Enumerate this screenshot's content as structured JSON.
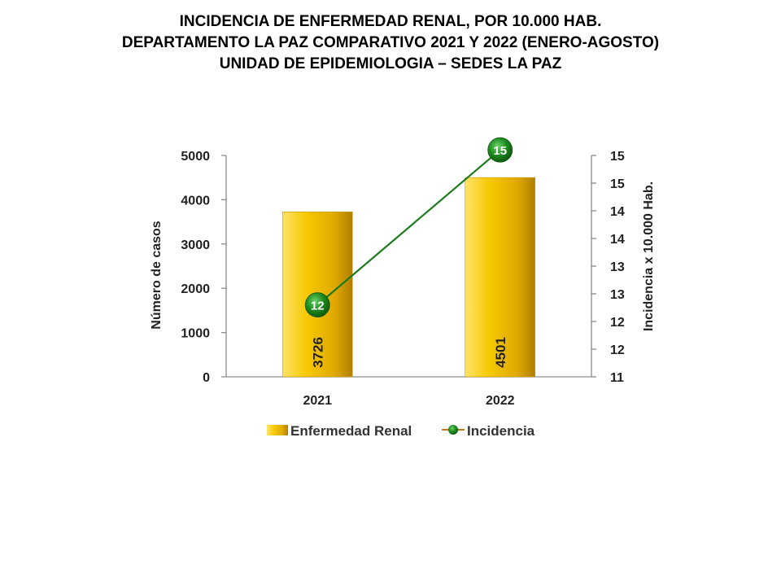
{
  "title": {
    "line1": "INCIDENCIA  DE  ENFERMEDAD  RENAL,  POR  10.000  HAB.",
    "line2": "DEPARTAMENTO  LA  PAZ  COMPARATIVO  2021  Y  2022  (ENERO-AGOSTO)",
    "line3": "UNIDAD DE EPIDEMIOLOGIA – SEDES LA PAZ"
  },
  "chart_data": {
    "type": "bar",
    "categories": [
      "2021",
      "2022"
    ],
    "series": [
      {
        "name": "Enfermedad Renal",
        "type": "bar",
        "axis": "left",
        "values": [
          3726,
          4501
        ],
        "value_labels": [
          "3726",
          "4501"
        ],
        "color": "#F2C200"
      },
      {
        "name": "Incidencia",
        "type": "line",
        "axis": "right",
        "values": [
          12.3,
          15.1
        ],
        "value_labels": [
          "12",
          "15"
        ],
        "color": "#1E7A1E",
        "marker_color": "#1E8C1E"
      }
    ],
    "ylabel": "Número de casos",
    "y2label": "Incidencia x 10.000 Hab.",
    "ylim": [
      0,
      5000
    ],
    "yticks": [
      "0",
      "1000",
      "2000",
      "3000",
      "4000",
      "5000"
    ],
    "y2lim": [
      11,
      15
    ],
    "y2ticks": [
      "11",
      "12",
      "12",
      "13",
      "13",
      "14",
      "14",
      "15",
      "15"
    ],
    "legend_position": "bottom",
    "grid": false
  }
}
